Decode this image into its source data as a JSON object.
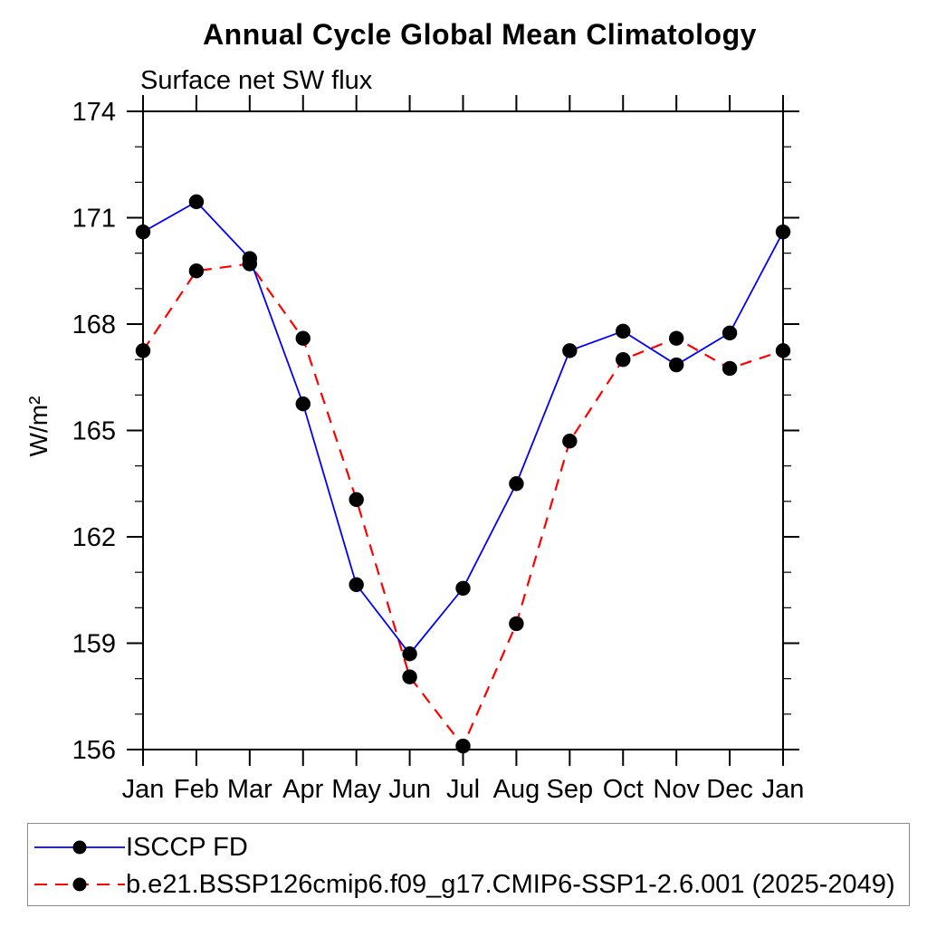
{
  "title": "Annual Cycle Global Mean Climatology",
  "subtitle": "Surface net SW flux",
  "ylabel": "W/m²",
  "chart_data": {
    "type": "line",
    "title": "Annual Cycle Global Mean Climatology",
    "subtitle": "Surface net SW flux",
    "xlabel": "",
    "ylabel": "W/m²",
    "x_categories": [
      "Jan",
      "Feb",
      "Mar",
      "Apr",
      "May",
      "Jun",
      "Jul",
      "Aug",
      "Sep",
      "Oct",
      "Nov",
      "Dec",
      "Jan"
    ],
    "ylim": [
      156,
      174
    ],
    "yticks": [
      156,
      159,
      162,
      165,
      168,
      171,
      174
    ],
    "ytick_step": 3,
    "y_minor_tick_step": 1,
    "grid": false,
    "legend_position": "bottom",
    "series": [
      {
        "name": "ISCCP FD",
        "color": "#0000ff",
        "style": "solid",
        "marker": "circle",
        "marker_color": "#000000",
        "values": [
          170.6,
          171.45,
          169.85,
          165.75,
          160.65,
          158.7,
          160.55,
          163.5,
          167.25,
          167.8,
          166.85,
          167.75,
          170.6
        ]
      },
      {
        "name": "b.e21.BSSP126cmip6.f09_g17.CMIP6-SSP1-2.6.001 (2025-2049)",
        "color": "#ff0000",
        "style": "dashed",
        "marker": "circle",
        "marker_color": "#000000",
        "values": [
          167.25,
          169.5,
          169.7,
          167.6,
          163.05,
          158.05,
          156.1,
          159.55,
          164.7,
          167.0,
          167.6,
          166.75,
          167.25
        ]
      }
    ]
  },
  "colors": {
    "axis": "#000000",
    "text": "#000000",
    "legend_border": "#8a8a8a",
    "background": "#ffffff"
  }
}
